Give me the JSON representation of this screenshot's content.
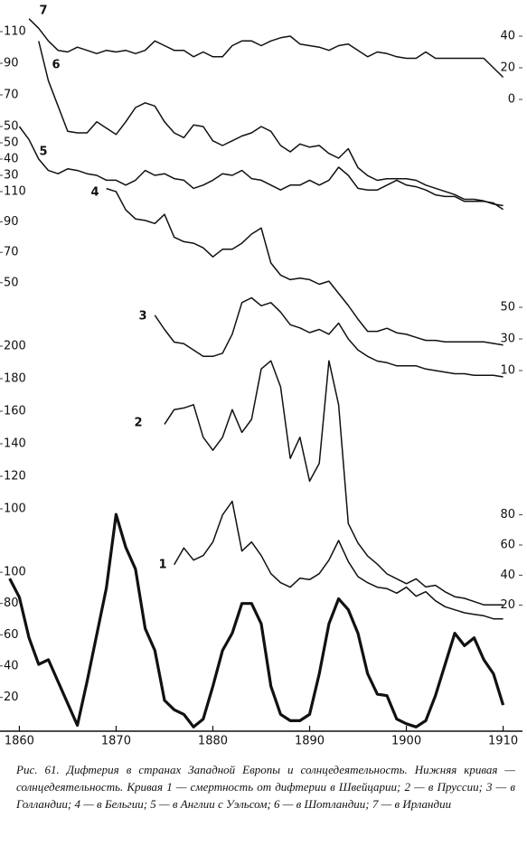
{
  "chart_data": [
    {
      "type": "line",
      "label": "7",
      "color": "#111111",
      "yaxis": "right",
      "x": [
        1861,
        1862,
        1863,
        1864,
        1865,
        1866,
        1867,
        1868,
        1869,
        1870,
        1871,
        1872,
        1873,
        1874,
        1875,
        1876,
        1877,
        1878,
        1879,
        1880,
        1881,
        1882,
        1883,
        1884,
        1885,
        1886,
        1887,
        1888,
        1889,
        1890,
        1891,
        1892,
        1893,
        1894,
        1895,
        1896,
        1897,
        1898,
        1899,
        1900,
        1901,
        1902,
        1903,
        1904,
        1905,
        1906,
        1907,
        1908,
        1909,
        1910
      ],
      "values": [
        51,
        45,
        37,
        31,
        30,
        33,
        31,
        29,
        31,
        30,
        31,
        29,
        31,
        37,
        34,
        31,
        31,
        27,
        30,
        27,
        27,
        34,
        37,
        37,
        34,
        37,
        39,
        40,
        35,
        34,
        33,
        31,
        34,
        35,
        31,
        27,
        30,
        29,
        27,
        26,
        26,
        30,
        26,
        26,
        26,
        26,
        26,
        26,
        20,
        14
      ],
      "xlim": [
        1858,
        1912
      ],
      "ylim": [
        0,
        60
      ],
      "yticks": [
        0,
        20,
        40
      ]
    },
    {
      "type": "line",
      "label": "6",
      "color": "#111111",
      "yaxis": "left",
      "x": [
        1862,
        1863,
        1864,
        1865,
        1866,
        1867,
        1868,
        1869,
        1870,
        1871,
        1872,
        1873,
        1874,
        1875,
        1876,
        1877,
        1878,
        1879,
        1880,
        1881,
        1882,
        1883,
        1884,
        1885,
        1886,
        1887,
        1888,
        1889,
        1890,
        1891,
        1892,
        1893,
        1894,
        1895,
        1896,
        1897,
        1898,
        1899,
        1900,
        1901,
        1902,
        1903,
        1904,
        1905,
        1906,
        1907,
        1908,
        1909,
        1910
      ],
      "values": [
        104,
        79,
        63,
        47,
        46,
        46,
        53,
        49,
        45,
        53,
        62,
        65,
        63,
        53,
        46,
        43,
        51,
        50,
        41,
        38,
        41,
        44,
        46,
        50,
        47,
        38,
        34,
        39,
        37,
        38,
        33,
        30,
        36,
        24,
        19,
        16,
        17,
        17,
        17,
        16,
        13,
        11,
        9,
        7,
        4,
        4,
        3,
        1,
        0
      ],
      "xlim": [
        1858,
        1912
      ],
      "ylim": [
        0,
        120
      ],
      "yticks": [
        50,
        70,
        90,
        110
      ]
    },
    {
      "type": "line",
      "label": "5",
      "color": "#111111",
      "yaxis": "left",
      "x": [
        1860,
        1861,
        1862,
        1863,
        1864,
        1865,
        1866,
        1867,
        1868,
        1869,
        1870,
        1871,
        1872,
        1873,
        1874,
        1875,
        1876,
        1877,
        1878,
        1879,
        1880,
        1881,
        1882,
        1883,
        1884,
        1885,
        1886,
        1887,
        1888,
        1889,
        1890,
        1891,
        1892,
        1893,
        1894,
        1895,
        1896,
        1897,
        1898,
        1899,
        1900,
        1901,
        1902,
        1903,
        1904,
        1905,
        1906,
        1907,
        1908,
        1909,
        1910
      ],
      "values": [
        60,
        52,
        40,
        33,
        31,
        34,
        33,
        31,
        30,
        27,
        27,
        24,
        27,
        33,
        30,
        31,
        28,
        27,
        22,
        24,
        27,
        31,
        30,
        33,
        28,
        27,
        24,
        21,
        24,
        24,
        27,
        24,
        27,
        35,
        30,
        22,
        21,
        21,
        24,
        27,
        24,
        23,
        21,
        18,
        17,
        17,
        14,
        14,
        14,
        13,
        9
      ],
      "xlim": [
        1858,
        1912
      ],
      "ylim": [
        0,
        70
      ],
      "yticks": [
        30,
        40,
        50
      ]
    },
    {
      "type": "line",
      "label": "4",
      "color": "#111111",
      "yaxis": "left",
      "x": [
        1869,
        1870,
        1871,
        1872,
        1873,
        1874,
        1875,
        1876,
        1877,
        1878,
        1879,
        1880,
        1881,
        1882,
        1883,
        1884,
        1885,
        1886,
        1887,
        1888,
        1889,
        1890,
        1891,
        1892,
        1893,
        1894,
        1895,
        1896,
        1897,
        1898,
        1899,
        1900,
        1901,
        1902,
        1903,
        1904,
        1905,
        1906,
        1907,
        1908,
        1909,
        1910
      ],
      "values": [
        112,
        110,
        98,
        92,
        91,
        89,
        95,
        80,
        77,
        76,
        73,
        67,
        72,
        72,
        76,
        82,
        86,
        63,
        55,
        52,
        53,
        52,
        49,
        51,
        43,
        35,
        26,
        18,
        18,
        20,
        17,
        16,
        14,
        12,
        12,
        11,
        11,
        11,
        11,
        11,
        10,
        9
      ],
      "xlim": [
        1858,
        1912
      ],
      "ylim": [
        0,
        120
      ],
      "yticks": [
        50,
        70,
        90,
        110
      ]
    },
    {
      "type": "line",
      "label": "3",
      "color": "#111111",
      "yaxis": "right",
      "x": [
        1874,
        1875,
        1876,
        1877,
        1878,
        1879,
        1880,
        1881,
        1882,
        1883,
        1884,
        1885,
        1886,
        1887,
        1888,
        1889,
        1890,
        1891,
        1892,
        1893,
        1894,
        1895,
        1896,
        1897,
        1898,
        1899,
        1900,
        1901,
        1902,
        1903,
        1904,
        1905,
        1906,
        1907,
        1908,
        1909,
        1910
      ],
      "values": [
        45,
        36,
        28,
        27,
        23,
        19,
        19,
        21,
        33,
        53,
        56,
        51,
        53,
        47,
        39,
        37,
        34,
        36,
        33,
        40,
        30,
        23,
        19,
        16,
        15,
        13,
        13,
        13,
        11,
        10,
        9,
        8,
        8,
        7,
        7,
        7,
        6
      ],
      "xlim": [
        1858,
        1912
      ],
      "ylim": [
        0,
        60
      ],
      "yticks": [
        10,
        30,
        50
      ]
    },
    {
      "type": "line",
      "label": "2",
      "color": "#111111",
      "yaxis": "left",
      "x": [
        1875,
        1876,
        1877,
        1878,
        1879,
        1880,
        1881,
        1882,
        1883,
        1884,
        1885,
        1886,
        1887,
        1888,
        1889,
        1890,
        1891,
        1892,
        1893,
        1894,
        1895,
        1896,
        1897,
        1898,
        1899,
        1900,
        1901,
        1902,
        1903,
        1904,
        1905,
        1906,
        1907,
        1908,
        1909,
        1910
      ],
      "values": [
        152,
        161,
        162,
        164,
        144,
        136,
        144,
        161,
        147,
        155,
        186,
        191,
        175,
        131,
        144,
        117,
        128,
        191,
        164,
        91,
        79,
        71,
        66,
        60,
        57,
        54,
        57,
        52,
        53,
        49,
        46,
        45,
        43,
        41,
        41,
        41
      ],
      "xlim": [
        1858,
        1912
      ],
      "ylim": [
        30,
        210
      ],
      "yticks": [
        100,
        120,
        140,
        160,
        180,
        200
      ]
    },
    {
      "type": "line",
      "label": "1",
      "color": "#111111",
      "yaxis": "right",
      "x": [
        1876,
        1877,
        1878,
        1879,
        1880,
        1881,
        1882,
        1883,
        1884,
        1885,
        1886,
        1887,
        1888,
        1889,
        1890,
        1891,
        1892,
        1893,
        1894,
        1895,
        1896,
        1897,
        1898,
        1899,
        1900,
        1901,
        1902,
        1903,
        1904,
        1905,
        1906,
        1907,
        1908,
        1909,
        1910
      ],
      "values": [
        47,
        58,
        50,
        53,
        62,
        80,
        89,
        56,
        62,
        53,
        41,
        35,
        32,
        38,
        37,
        41,
        50,
        63,
        49,
        39,
        35,
        32,
        31,
        28,
        32,
        26,
        29,
        23,
        19,
        17,
        15,
        14,
        13,
        11,
        11
      ],
      "xlim": [
        1858,
        1912
      ],
      "ylim": [
        0,
        90
      ],
      "yticks": [
        20,
        40,
        60,
        80
      ]
    },
    {
      "type": "line",
      "color": "#111111",
      "yaxis": "left",
      "x": [
        1859,
        1860,
        1861,
        1862,
        1863,
        1864,
        1865,
        1866,
        1867,
        1868,
        1869,
        1870,
        1871,
        1872,
        1873,
        1874,
        1875,
        1876,
        1877,
        1878,
        1879,
        1880,
        1881,
        1882,
        1883,
        1884,
        1885,
        1886,
        1887,
        1888,
        1889,
        1890,
        1891,
        1892,
        1893,
        1894,
        1895,
        1896,
        1897,
        1898,
        1899,
        1900,
        1901,
        1902,
        1903,
        1904,
        1905,
        1906,
        1907,
        1908,
        1909,
        1910
      ],
      "values": [
        96,
        84,
        58,
        41,
        44,
        30,
        16,
        2,
        30,
        60,
        90,
        137,
        116,
        102,
        64,
        50,
        18,
        12,
        9,
        1,
        6,
        27,
        50,
        61,
        80,
        80,
        67,
        27,
        9,
        5,
        5,
        9,
        35,
        67,
        83,
        76,
        61,
        35,
        22,
        21,
        6,
        3,
        1,
        5,
        21,
        41,
        61,
        53,
        58,
        44,
        35,
        15
      ],
      "xlim": [
        1858,
        1912
      ],
      "ylim": [
        0,
        140
      ],
      "yticks": [
        20,
        40,
        60,
        80,
        100
      ],
      "xticks": [
        1860,
        1870,
        1880,
        1890,
        1900,
        1910
      ]
    }
  ],
  "caption": "Рис. 61. Дифтерия в странах Западной Европы и солнцедеятельность. Нижняя кривая — солнцедеятельность. Кривая 1 — смертность от дифтерии в Швейцарии; 2 — в Пруссии; 3 — в Голландии; 4 — в Бельгии; 5 — в Англии с Уэльсом; 6 — в Шотландии; 7 — в Ирландии"
}
